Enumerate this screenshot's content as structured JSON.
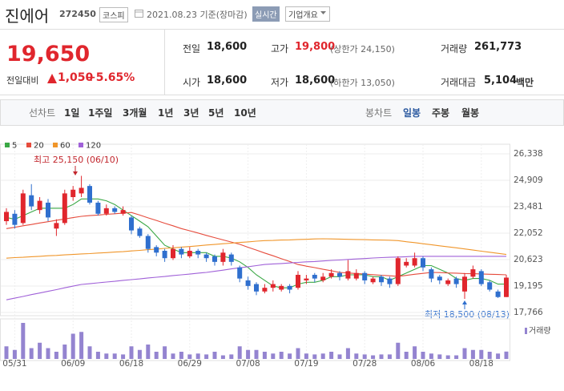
{
  "header": {
    "name": "진에어",
    "code": "272450",
    "market": "코스피",
    "date": "2021.08.23 기준(장마감)",
    "realtime": "실시간",
    "company_info": "기업개요"
  },
  "quote": {
    "price": "19,650",
    "change_label": "전일대비",
    "change": "1,050",
    "change_rate": "+5.65%"
  },
  "stats": [
    {
      "label": "전일",
      "value": "18,600"
    },
    {
      "label": "고가",
      "value": "19,800",
      "note": "(상한가 24,150)"
    },
    {
      "label": "거래량",
      "value": "261,773"
    },
    {
      "label": "시가",
      "value": "18,600"
    },
    {
      "label": "저가",
      "value": "18,600",
      "note": "(하한가 13,050)"
    },
    {
      "label": "거래대금",
      "value": "5,104",
      "unit": "백만"
    }
  ],
  "tabs": {
    "line_label": "선차트",
    "line_periods": [
      "1일",
      "1주일",
      "3개월",
      "1년",
      "3년",
      "5년",
      "10년"
    ],
    "candle_label": "봉차트",
    "candle_periods": [
      "일봉",
      "주봉",
      "월봉"
    ]
  },
  "chart_data": {
    "type": "candlestick",
    "categories": [
      null,
      "05/31",
      null,
      null,
      null,
      null,
      null,
      null,
      "06/09",
      null,
      null,
      null,
      null,
      null,
      null,
      "06/18",
      null,
      null,
      null,
      null,
      null,
      null,
      "06/29",
      null,
      null,
      null,
      null,
      null,
      null,
      "07/08",
      null,
      null,
      null,
      null,
      null,
      null,
      "07/19",
      null,
      null,
      null,
      null,
      null,
      null,
      "07/28",
      null,
      null,
      null,
      null,
      null,
      null,
      "08/06",
      null,
      null,
      null,
      null,
      null,
      null,
      "08/18",
      null,
      null,
      null
    ],
    "open": [
      22700,
      23100,
      22600,
      24100,
      23300,
      23700,
      22300,
      22600,
      24000,
      24200,
      24600,
      23700,
      23100,
      23400,
      23100,
      22900,
      22300,
      21900,
      21300,
      21100,
      20700,
      21200,
      20800,
      21100,
      20900,
      20800,
      20500,
      20900,
      20200,
      19500,
      19300,
      18900,
      19100,
      19000,
      19200,
      19100,
      19500,
      19800,
      19500,
      19700,
      19900,
      19600,
      19600,
      19900,
      19400,
      19700,
      19600,
      19300,
      20300,
      20300,
      20700,
      20100,
      19700,
      19300,
      19600,
      18900,
      19700,
      20000,
      19400,
      18900,
      18600
    ],
    "high": [
      23400,
      23300,
      24400,
      24700,
      24000,
      23900,
      22800,
      24400,
      24600,
      25150,
      24700,
      23800,
      23600,
      23500,
      23500,
      23000,
      22400,
      22000,
      21400,
      21200,
      21400,
      21300,
      21300,
      21200,
      21000,
      20900,
      21200,
      21000,
      20300,
      19700,
      19400,
      19300,
      19500,
      19300,
      19300,
      20000,
      19800,
      19900,
      19900,
      20100,
      20000,
      20600,
      20100,
      20000,
      19700,
      19800,
      19700,
      20800,
      20700,
      21000,
      20800,
      20200,
      19800,
      19600,
      19700,
      19900,
      20300,
      20100,
      19500,
      19000,
      19800
    ],
    "low": [
      22500,
      22300,
      22500,
      23300,
      23100,
      22700,
      21900,
      22500,
      23800,
      24000,
      23600,
      23000,
      23000,
      23100,
      23000,
      22000,
      21800,
      21000,
      20800,
      20500,
      20600,
      20700,
      20700,
      20700,
      20500,
      20300,
      20300,
      20300,
      19400,
      19000,
      18700,
      18800,
      18900,
      18900,
      18800,
      19000,
      19300,
      19400,
      19400,
      19600,
      19500,
      19500,
      19500,
      19300,
      19300,
      19200,
      19100,
      19200,
      20200,
      20200,
      20000,
      19400,
      19300,
      19200,
      19100,
      18500,
      19600,
      19200,
      18900,
      18550,
      18600
    ],
    "close": [
      23200,
      22500,
      24200,
      23500,
      23800,
      22900,
      22600,
      24200,
      24400,
      24500,
      23700,
      23100,
      23400,
      23200,
      23300,
      22200,
      21900,
      21200,
      21000,
      20700,
      21200,
      20900,
      21100,
      20900,
      20700,
      20500,
      21000,
      20500,
      19600,
      19200,
      18900,
      19100,
      19300,
      19200,
      19000,
      19800,
      19600,
      19600,
      19700,
      19900,
      19700,
      20000,
      19900,
      19500,
      19600,
      19400,
      19300,
      20700,
      20500,
      20700,
      20200,
      19600,
      19500,
      19500,
      19300,
      19700,
      20100,
      19300,
      19000,
      18600,
      19650
    ],
    "volume": [
      448000,
      320000,
      1280000,
      384000,
      576000,
      384000,
      256000,
      512000,
      896000,
      960000,
      448000,
      256000,
      192000,
      192000,
      160000,
      448000,
      320000,
      512000,
      256000,
      448000,
      192000,
      256000,
      160000,
      192000,
      160000,
      256000,
      128000,
      160000,
      448000,
      320000,
      320000,
      256000,
      192000,
      256000,
      192000,
      384000,
      192000,
      160000,
      192000,
      256000,
      160000,
      384000,
      192000,
      160000,
      128000,
      160000,
      160000,
      576000,
      256000,
      448000,
      256000,
      192000,
      160000,
      128000,
      128000,
      384000,
      320000,
      320000,
      256000,
      192000,
      261773
    ],
    "up_color": "#e0262d",
    "down_color": "#2f6fce",
    "volume_color": "#9484d0",
    "volume_label": "거래량",
    "moving_averages": [
      {
        "name": "5",
        "color": "#3aa845",
        "values": [
          22900,
          22800,
          23000,
          23200,
          23400,
          23400,
          23400,
          23400,
          23600,
          23900,
          23900,
          23900,
          23800,
          23600,
          23300,
          23000,
          22700,
          22400,
          21900,
          21400,
          21200,
          21000,
          21000,
          21000,
          21000,
          20800,
          20800,
          20700,
          20500,
          20200,
          19800,
          19500,
          19200,
          19100,
          19100,
          19300,
          19400,
          19400,
          19500,
          19700,
          19700,
          19800,
          19800,
          19800,
          19700,
          19700,
          19500,
          19700,
          19900,
          20100,
          20300,
          20300,
          20100,
          19900,
          19600,
          19500,
          19600,
          19600,
          19500,
          19300,
          19300
        ]
      },
      {
        "name": "20",
        "color": "#e64b3c",
        "values": [
          22300,
          22370,
          22450,
          22520,
          22600,
          22670,
          22750,
          22820,
          22890,
          22960,
          23000,
          23030,
          23070,
          23100,
          23140,
          23170,
          23030,
          22880,
          22740,
          22590,
          22450,
          22300,
          22180,
          22060,
          21930,
          21810,
          21690,
          21570,
          21450,
          21290,
          21140,
          20980,
          20830,
          20670,
          20520,
          20360,
          20270,
          20190,
          20100,
          20020,
          19930,
          19900,
          19870,
          19840,
          19810,
          19780,
          19750,
          19720,
          19770,
          19830,
          19880,
          19930,
          19920,
          19900,
          19890,
          19870,
          19860,
          19850,
          19830,
          19820,
          19800
        ]
      },
      {
        "name": "60",
        "color": "#f0962b",
        "values": [
          20700,
          20730,
          20750,
          20780,
          20800,
          20830,
          20850,
          20880,
          20900,
          20930,
          20950,
          20980,
          21000,
          21030,
          21050,
          21090,
          21120,
          21160,
          21190,
          21230,
          21260,
          21300,
          21330,
          21370,
          21410,
          21440,
          21480,
          21510,
          21550,
          21580,
          21620,
          21650,
          21660,
          21680,
          21690,
          21710,
          21720,
          21740,
          21750,
          21740,
          21730,
          21720,
          21710,
          21700,
          21690,
          21680,
          21670,
          21650,
          21590,
          21540,
          21480,
          21430,
          21370,
          21310,
          21260,
          21200,
          21140,
          21080,
          21020,
          20960,
          20900
        ]
      },
      {
        "name": "120",
        "color": "#a061d8",
        "values": [
          18450,
          18540,
          18630,
          18730,
          18820,
          18910,
          19000,
          19100,
          19190,
          19280,
          19320,
          19370,
          19410,
          19450,
          19500,
          19540,
          19580,
          19630,
          19670,
          19710,
          19760,
          19800,
          19840,
          19890,
          19930,
          19990,
          20050,
          20120,
          20180,
          20240,
          20300,
          20360,
          20390,
          20410,
          20440,
          20470,
          20500,
          20520,
          20550,
          20580,
          20600,
          20630,
          20660,
          20680,
          20710,
          20730,
          20750,
          20760,
          20780,
          20800,
          20800,
          20800,
          20800,
          20800,
          20800,
          20800,
          20800,
          20800,
          20800,
          20800,
          20800
        ]
      }
    ],
    "ylim": [
      17766,
      26338
    ],
    "yticks": [
      {
        "value": 17766,
        "label": "17,766"
      },
      {
        "value": 19195,
        "label": "19,195"
      },
      {
        "value": 20623,
        "label": "20,623"
      },
      {
        "value": 22052,
        "label": "22,052"
      },
      {
        "value": 23481,
        "label": "23,481"
      },
      {
        "value": 24909,
        "label": "24,909"
      },
      {
        "value": 26338,
        "label": "26,338"
      }
    ],
    "annotations": [
      "최고 25,150 (06/10)",
      "최저 18,500 (08/13)"
    ],
    "grid": true
  }
}
